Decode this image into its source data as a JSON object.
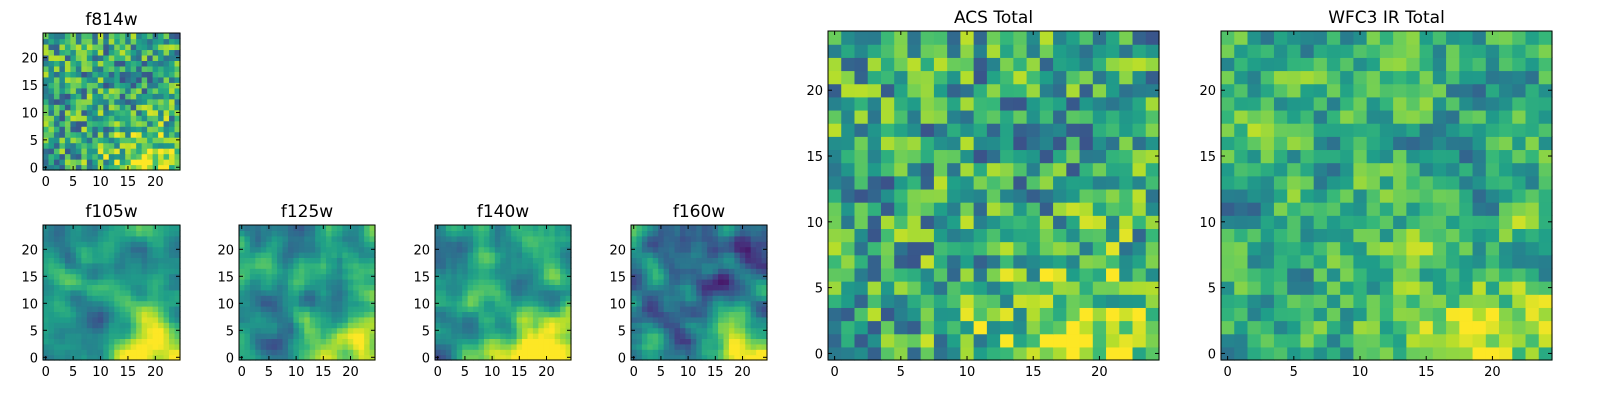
{
  "chart_data": [
    {
      "id": "f814w",
      "type": "heatmap",
      "title": "f814w",
      "grid_size": 25,
      "xlim": [
        0,
        24
      ],
      "ylim": [
        0,
        24
      ],
      "xticks": [
        "0",
        "5",
        "10",
        "15",
        "20"
      ],
      "yticks": [
        "0",
        "5",
        "10",
        "15",
        "20"
      ],
      "colormap": "viridis",
      "pattern": "noisy",
      "seed": 11,
      "value_range": [
        0,
        1
      ]
    },
    {
      "id": "f105w",
      "type": "heatmap",
      "title": "f105w",
      "grid_size": 25,
      "xlim": [
        0,
        24
      ],
      "ylim": [
        0,
        24
      ],
      "xticks": [
        "0",
        "5",
        "10",
        "15",
        "20"
      ],
      "yticks": [
        "0",
        "5",
        "10",
        "15",
        "20"
      ],
      "colormap": "viridis",
      "pattern": "smooth",
      "seed": 21,
      "value_range": [
        0,
        1
      ]
    },
    {
      "id": "f125w",
      "type": "heatmap",
      "title": "f125w",
      "grid_size": 25,
      "xlim": [
        0,
        24
      ],
      "ylim": [
        0,
        24
      ],
      "xticks": [
        "0",
        "5",
        "10",
        "15",
        "20"
      ],
      "yticks": [
        "0",
        "5",
        "10",
        "15",
        "20"
      ],
      "colormap": "viridis",
      "pattern": "smooth",
      "seed": 33,
      "value_range": [
        0,
        1
      ]
    },
    {
      "id": "f140w",
      "type": "heatmap",
      "title": "f140w",
      "grid_size": 25,
      "xlim": [
        0,
        24
      ],
      "ylim": [
        0,
        24
      ],
      "xticks": [
        "0",
        "5",
        "10",
        "15",
        "20"
      ],
      "yticks": [
        "0",
        "5",
        "10",
        "15",
        "20"
      ],
      "colormap": "viridis",
      "pattern": "smooth",
      "seed": 47,
      "value_range": [
        0,
        1
      ]
    },
    {
      "id": "f160w",
      "type": "heatmap",
      "title": "f160w",
      "grid_size": 25,
      "xlim": [
        0,
        24
      ],
      "ylim": [
        0,
        24
      ],
      "xticks": [
        "0",
        "5",
        "10",
        "15",
        "20"
      ],
      "yticks": [
        "0",
        "5",
        "10",
        "15",
        "20"
      ],
      "colormap": "viridis",
      "pattern": "smooth_dark",
      "seed": 59,
      "value_range": [
        0,
        1
      ]
    },
    {
      "id": "acs_total",
      "type": "heatmap",
      "title": "ACS Total",
      "grid_size": 25,
      "xlim": [
        0,
        24
      ],
      "ylim": [
        0,
        24
      ],
      "xticks": [
        "0",
        "5",
        "10",
        "15",
        "20"
      ],
      "yticks": [
        "0",
        "5",
        "10",
        "15",
        "20"
      ],
      "colormap": "viridis",
      "pattern": "noisy",
      "seed": 11,
      "value_range": [
        0,
        1
      ]
    },
    {
      "id": "wfc3_ir_total",
      "type": "heatmap",
      "title": "WFC3 IR Total",
      "grid_size": 25,
      "xlim": [
        0,
        24
      ],
      "ylim": [
        0,
        24
      ],
      "xticks": [
        "0",
        "5",
        "10",
        "15",
        "20"
      ],
      "yticks": [
        "0",
        "5",
        "10",
        "15",
        "20"
      ],
      "colormap": "viridis",
      "pattern": "noisy_smooth",
      "seed": 77,
      "value_range": [
        0,
        1
      ]
    }
  ]
}
